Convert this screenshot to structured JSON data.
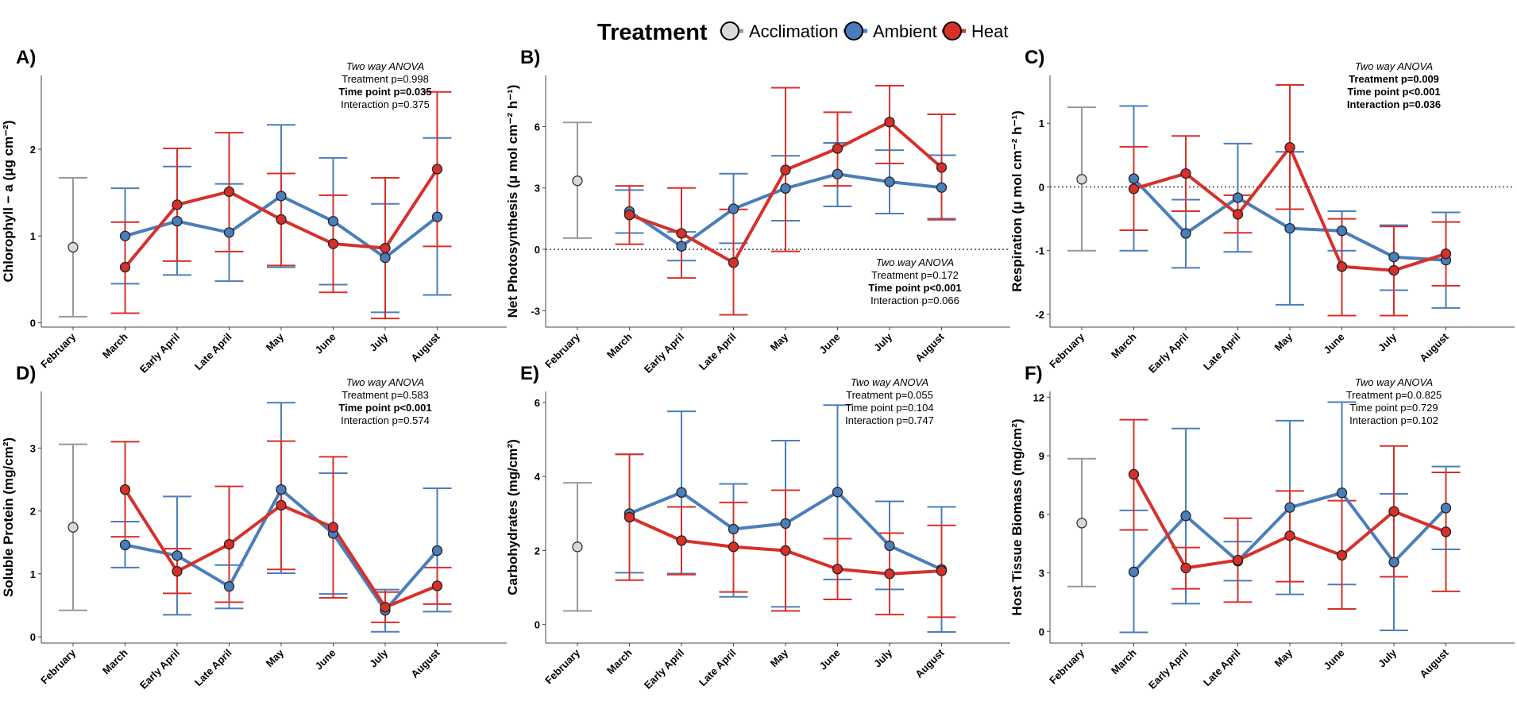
{
  "legend": {
    "title": "Treatment",
    "entries": [
      "Acclimation",
      "Ambient",
      "Heat"
    ]
  },
  "colors": {
    "Acclimation": "#999999",
    "Acclimation_fill": "#d9d9d9",
    "Ambient": "#4a7ebb",
    "Heat": "#d7302a"
  },
  "chart_data": [
    {
      "panel": "A)",
      "type": "line",
      "ylabel": "Chlorophyll − a (μg cm⁻²)",
      "categories": [
        "February",
        "March",
        "Early April",
        "Late April",
        "May",
        "June",
        "July",
        "August"
      ],
      "ylim": [
        -0.05,
        2.85
      ],
      "yticks": [
        0,
        1,
        2
      ],
      "acclimation": {
        "value": 0.87,
        "lo": 0.07,
        "hi": 1.67
      },
      "series": [
        {
          "name": "Ambient",
          "values": [
            null,
            1.0,
            1.17,
            1.04,
            1.46,
            1.17,
            0.75,
            1.22
          ],
          "lo": [
            null,
            0.45,
            0.55,
            0.48,
            0.64,
            0.44,
            0.12,
            0.32
          ],
          "hi": [
            null,
            1.55,
            1.8,
            1.6,
            2.28,
            1.9,
            1.37,
            2.13
          ]
        },
        {
          "name": "Heat",
          "values": [
            null,
            0.64,
            1.36,
            1.51,
            1.19,
            0.91,
            0.86,
            1.77
          ],
          "lo": [
            null,
            0.11,
            0.71,
            0.82,
            0.66,
            0.35,
            0.05,
            0.88
          ],
          "hi": [
            null,
            1.16,
            2.01,
            2.19,
            1.72,
            1.47,
            1.67,
            2.66
          ]
        }
      ],
      "annotation": [
        "Two way ANOVA",
        "Treatment p=0.998",
        "Time point p=0.035",
        "Interaction p=0.375"
      ],
      "annotation_bold": [
        false,
        false,
        true,
        false
      ],
      "annotation_pos": "top-right"
    },
    {
      "panel": "B)",
      "type": "line",
      "ylabel": "Net Photosynthesis (μ mol cm⁻² h⁻¹)",
      "categories": [
        "February",
        "March",
        "Early April",
        "Late April",
        "May",
        "June",
        "July",
        "August"
      ],
      "ylim": [
        -3.8,
        8.5
      ],
      "yticks": [
        -3,
        0,
        3,
        6
      ],
      "hline": 0,
      "acclimation": {
        "value": 3.35,
        "lo": 0.55,
        "hi": 6.2
      },
      "series": [
        {
          "name": "Ambient",
          "values": [
            null,
            1.85,
            0.15,
            1.98,
            2.98,
            3.68,
            3.3,
            3.02
          ],
          "lo": [
            null,
            0.8,
            -0.55,
            0.3,
            1.4,
            2.1,
            1.75,
            1.5
          ],
          "hi": [
            null,
            2.9,
            0.85,
            3.7,
            4.57,
            5.2,
            4.85,
            4.6
          ]
        },
        {
          "name": "Heat",
          "values": [
            null,
            1.68,
            0.78,
            -0.65,
            3.88,
            4.93,
            6.22,
            4.0
          ],
          "lo": [
            null,
            0.25,
            -1.4,
            -3.2,
            -0.1,
            3.1,
            4.2,
            1.45
          ],
          "hi": [
            null,
            3.1,
            3.0,
            1.95,
            7.9,
            6.7,
            8.0,
            6.6
          ]
        }
      ],
      "annotation": [
        "Two way ANOVA",
        "Treatment p=0.172",
        "Time point p<0.001",
        "Interaction p=0.066"
      ],
      "annotation_bold": [
        false,
        false,
        true,
        false
      ],
      "annotation_pos": "bottom-right"
    },
    {
      "panel": "C)",
      "type": "line",
      "ylabel": "Respiration (μ mol cm⁻² h⁻¹)",
      "categories": [
        "February",
        "March",
        "Early April",
        "Late April",
        "May",
        "June",
        "July",
        "August"
      ],
      "ylim": [
        -2.2,
        1.75
      ],
      "yticks": [
        -2,
        -1,
        0,
        1
      ],
      "hline": 0,
      "acclimation": {
        "value": 0.12,
        "lo": -1.0,
        "hi": 1.25
      },
      "series": [
        {
          "name": "Ambient",
          "values": [
            null,
            0.13,
            -0.73,
            -0.17,
            -0.65,
            -0.69,
            -1.1,
            -1.15
          ],
          "lo": [
            null,
            -1.0,
            -1.27,
            -1.02,
            -1.85,
            -1.0,
            -1.62,
            -1.9
          ],
          "hi": [
            null,
            1.27,
            -0.2,
            0.68,
            0.55,
            -0.38,
            -0.6,
            -0.4
          ]
        },
        {
          "name": "Heat",
          "values": [
            null,
            -0.03,
            0.21,
            -0.43,
            0.62,
            -1.25,
            -1.31,
            -1.05
          ],
          "lo": [
            null,
            -0.68,
            -0.38,
            -0.72,
            -0.35,
            -2.02,
            -2.02,
            -1.55
          ],
          "hi": [
            null,
            0.63,
            0.8,
            -0.13,
            1.6,
            -0.5,
            -0.62,
            -0.55
          ]
        }
      ],
      "annotation": [
        "Two way ANOVA",
        "Treatment p=0.009",
        "Time point p<0.001",
        "Interaction p=0.036"
      ],
      "annotation_bold": [
        false,
        true,
        true,
        true
      ],
      "annotation_pos": "top-right"
    },
    {
      "panel": "D)",
      "type": "line",
      "ylabel": "Soluble Protein (mg/cm²)",
      "categories": [
        "February",
        "March",
        "Early April",
        "Late April",
        "May",
        "June",
        "July",
        "August"
      ],
      "ylim": [
        -0.1,
        3.9
      ],
      "yticks": [
        0,
        1,
        2,
        3
      ],
      "acclimation": {
        "value": 1.74,
        "lo": 0.42,
        "hi": 3.06
      },
      "series": [
        {
          "name": "Ambient",
          "values": [
            null,
            1.46,
            1.29,
            0.8,
            2.34,
            1.64,
            0.42,
            1.37
          ],
          "lo": [
            null,
            1.1,
            0.35,
            0.45,
            1.01,
            0.68,
            0.08,
            0.4
          ],
          "hi": [
            null,
            1.83,
            2.23,
            1.14,
            3.72,
            2.6,
            0.75,
            2.36
          ]
        },
        {
          "name": "Heat",
          "values": [
            null,
            2.34,
            1.04,
            1.47,
            2.09,
            1.74,
            0.47,
            0.81
          ],
          "lo": [
            null,
            1.59,
            0.69,
            0.55,
            1.07,
            0.62,
            0.23,
            0.52
          ],
          "hi": [
            null,
            3.1,
            1.4,
            2.39,
            3.11,
            2.86,
            0.71,
            1.1
          ]
        }
      ],
      "annotation": [
        "Two way ANOVA",
        "Treatment p=0.583",
        "Time point p<0.001",
        "Interaction p=0.574"
      ],
      "annotation_bold": [
        false,
        false,
        true,
        false
      ],
      "annotation_pos": "top-right"
    },
    {
      "panel": "E)",
      "type": "line",
      "ylabel": "Carbohydrates (mg/cm²)",
      "categories": [
        "February",
        "March",
        "Early April",
        "Late April",
        "May",
        "June",
        "July",
        "August"
      ],
      "ylim": [
        -0.5,
        6.3
      ],
      "yticks": [
        0,
        2,
        4,
        6
      ],
      "acclimation": {
        "value": 2.1,
        "lo": 0.37,
        "hi": 3.83
      },
      "series": [
        {
          "name": "Ambient",
          "values": [
            null,
            3.0,
            3.57,
            2.58,
            2.73,
            3.58,
            2.13,
            1.49
          ],
          "lo": [
            null,
            1.4,
            1.38,
            0.75,
            0.48,
            1.22,
            0.95,
            -0.2
          ],
          "hi": [
            null,
            4.6,
            5.76,
            3.8,
            4.97,
            5.93,
            3.33,
            3.18
          ]
        },
        {
          "name": "Heat",
          "values": [
            null,
            2.9,
            2.27,
            2.1,
            2.0,
            1.5,
            1.37,
            1.45
          ],
          "lo": [
            null,
            1.2,
            1.35,
            0.88,
            0.37,
            0.68,
            0.27,
            0.2
          ],
          "hi": [
            null,
            4.6,
            3.18,
            3.3,
            3.63,
            2.32,
            2.47,
            2.68
          ]
        }
      ],
      "annotation": [
        "Two way ANOVA",
        "Treatment p=0.055",
        "Time point p=0.104",
        "Interaction p=0.747"
      ],
      "annotation_bold": [
        false,
        false,
        false,
        false
      ],
      "annotation_pos": "top-right"
    },
    {
      "panel": "F)",
      "type": "line",
      "ylabel": "Host Tissue Biomass (mg/cm²)",
      "categories": [
        "February",
        "March",
        "Early April",
        "Late April",
        "May",
        "June",
        "July",
        "August"
      ],
      "ylim": [
        -0.6,
        12.3
      ],
      "yticks": [
        0,
        3,
        6,
        9,
        12
      ],
      "acclimation": {
        "value": 5.55,
        "lo": 2.3,
        "hi": 8.85
      },
      "series": [
        {
          "name": "Ambient",
          "values": [
            null,
            3.05,
            5.92,
            3.6,
            6.35,
            7.1,
            3.55,
            6.32
          ],
          "lo": [
            null,
            -0.05,
            1.42,
            2.6,
            1.9,
            2.4,
            0.05,
            4.2
          ],
          "hi": [
            null,
            6.2,
            10.4,
            4.6,
            10.8,
            11.75,
            7.05,
            8.45
          ]
        },
        {
          "name": "Heat",
          "values": [
            null,
            8.05,
            3.25,
            3.65,
            4.9,
            3.9,
            6.15,
            5.1
          ],
          "lo": [
            null,
            5.2,
            2.18,
            1.5,
            2.55,
            1.15,
            2.8,
            2.05
          ],
          "hi": [
            null,
            10.85,
            4.3,
            5.8,
            7.2,
            6.7,
            9.5,
            8.15
          ]
        }
      ],
      "annotation": [
        "Two way ANOVA",
        "Treatment p=0.0.825",
        "Time point p=0.729",
        "Interaction p=0.102"
      ],
      "annotation_bold": [
        false,
        false,
        false,
        false
      ],
      "annotation_pos": "top-right"
    }
  ]
}
